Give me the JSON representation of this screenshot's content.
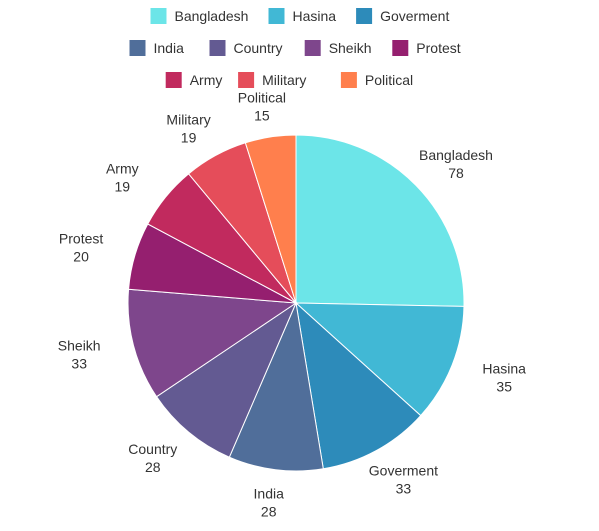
{
  "chart_data": {
    "type": "pie",
    "title": "",
    "legend_position": "top",
    "categories": [
      "Bangladesh",
      "Hasina",
      "Goverment",
      "India",
      "Country",
      "Sheikh",
      "Protest",
      "Army",
      "Military",
      "Political"
    ],
    "values": [
      78,
      35,
      33,
      28,
      28,
      33,
      20,
      19,
      19,
      15
    ],
    "colors": [
      "#6ce5e8",
      "#41b8d5",
      "#2d8bba",
      "#506e9a",
      "#635a92",
      "#7e468c",
      "#951f6f",
      "#c12a5e",
      "#e54d5a",
      "#ff7f4d"
    ]
  }
}
